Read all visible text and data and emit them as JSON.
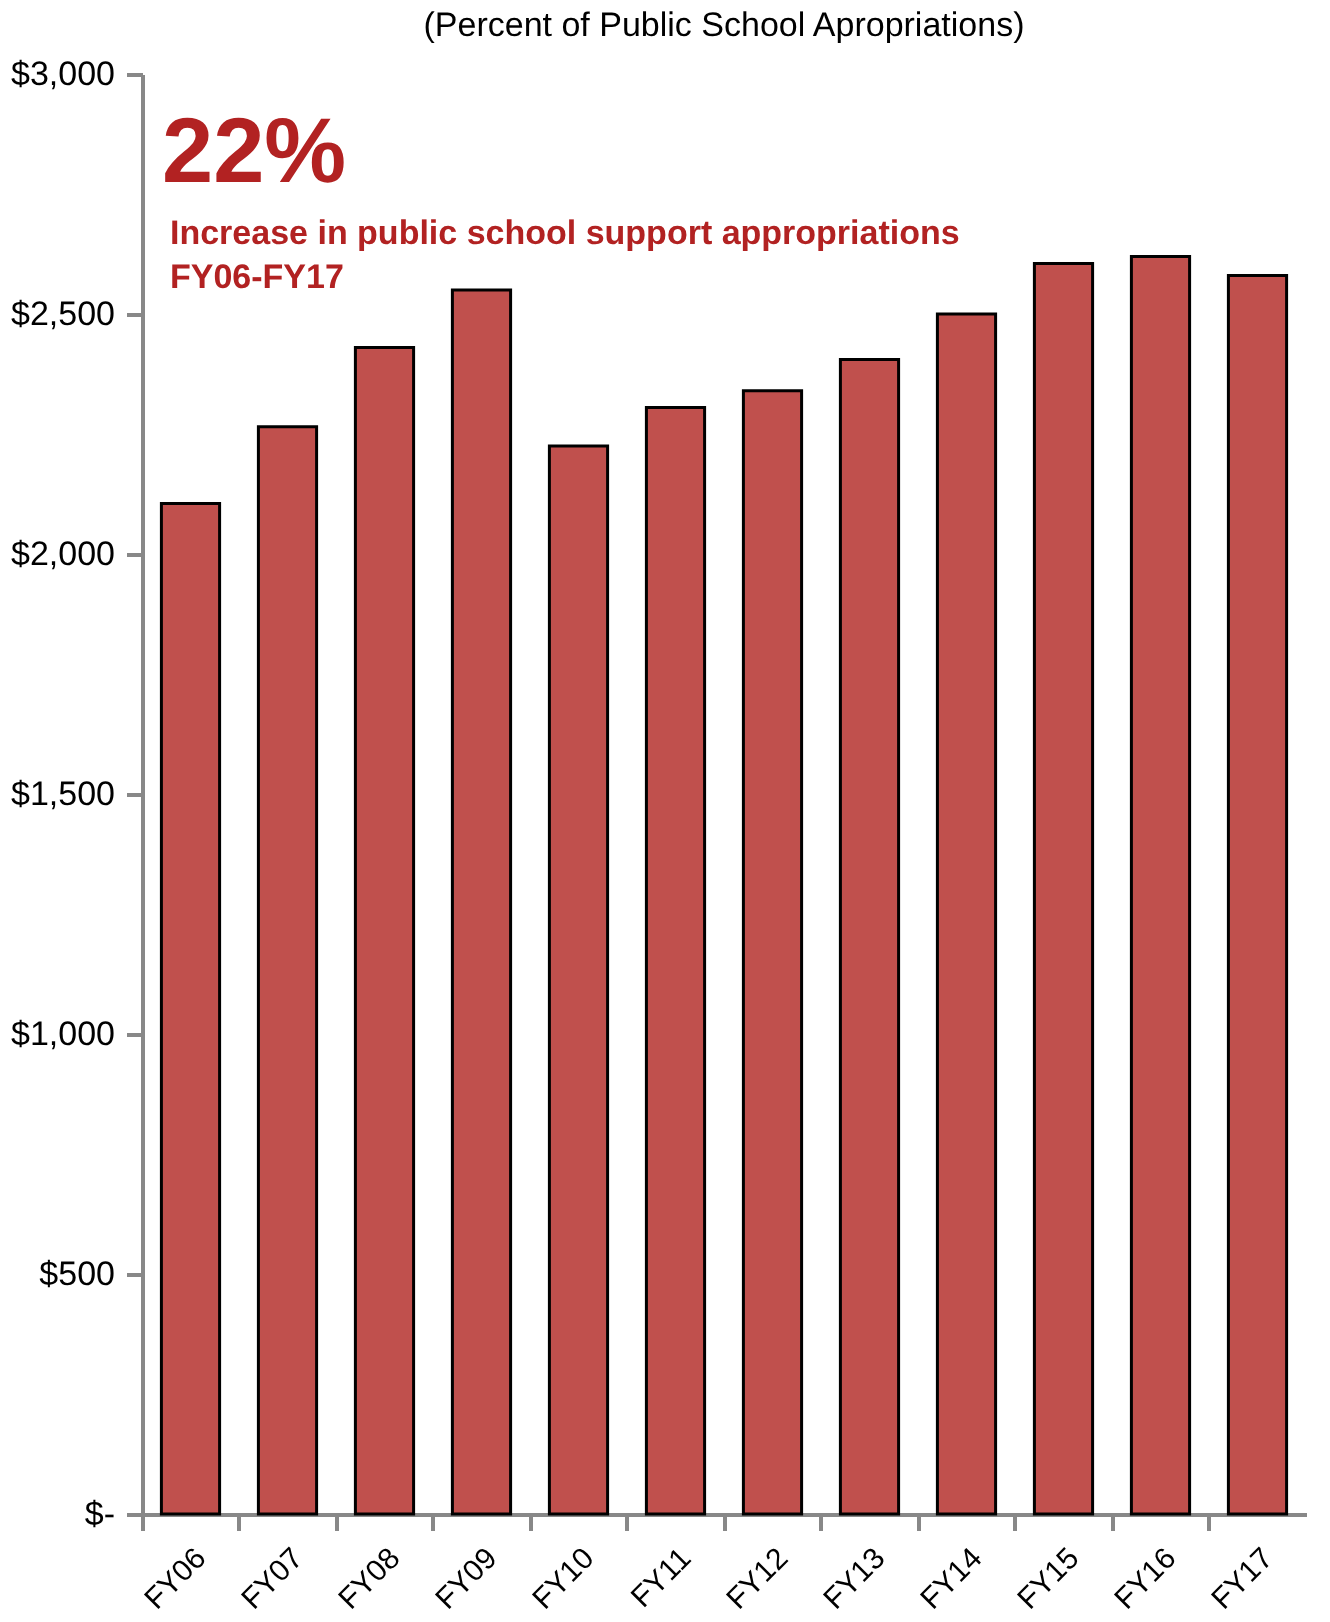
{
  "chart_data": {
    "type": "bar",
    "subtitle": "(Percent of Public School Apropriations)",
    "categories": [
      "FY06",
      "FY07",
      "FY08",
      "FY09",
      "FY10",
      "FY11",
      "FY12",
      "FY13",
      "FY14",
      "FY15",
      "FY16",
      "FY17"
    ],
    "values": [
      2105,
      2265,
      2430,
      2550,
      2225,
      2305,
      2340,
      2405,
      2500,
      2605,
      2620,
      2580
    ],
    "color": "#c0504d",
    "ylim": [
      0,
      3000
    ],
    "yticks": [
      {
        "value": 0,
        "label": "$-"
      },
      {
        "value": 500,
        "label": "$500"
      },
      {
        "value": 1000,
        "label": "$1,000"
      },
      {
        "value": 1500,
        "label": "$1,500"
      },
      {
        "value": 2000,
        "label": "$2,000"
      },
      {
        "value": 2500,
        "label": "$2,500"
      },
      {
        "value": 3000,
        "label": "$3,000"
      }
    ],
    "annotations": [
      "22%",
      "Increase in public school support appropriations",
      "FY06-FY17"
    ],
    "grid": false
  }
}
